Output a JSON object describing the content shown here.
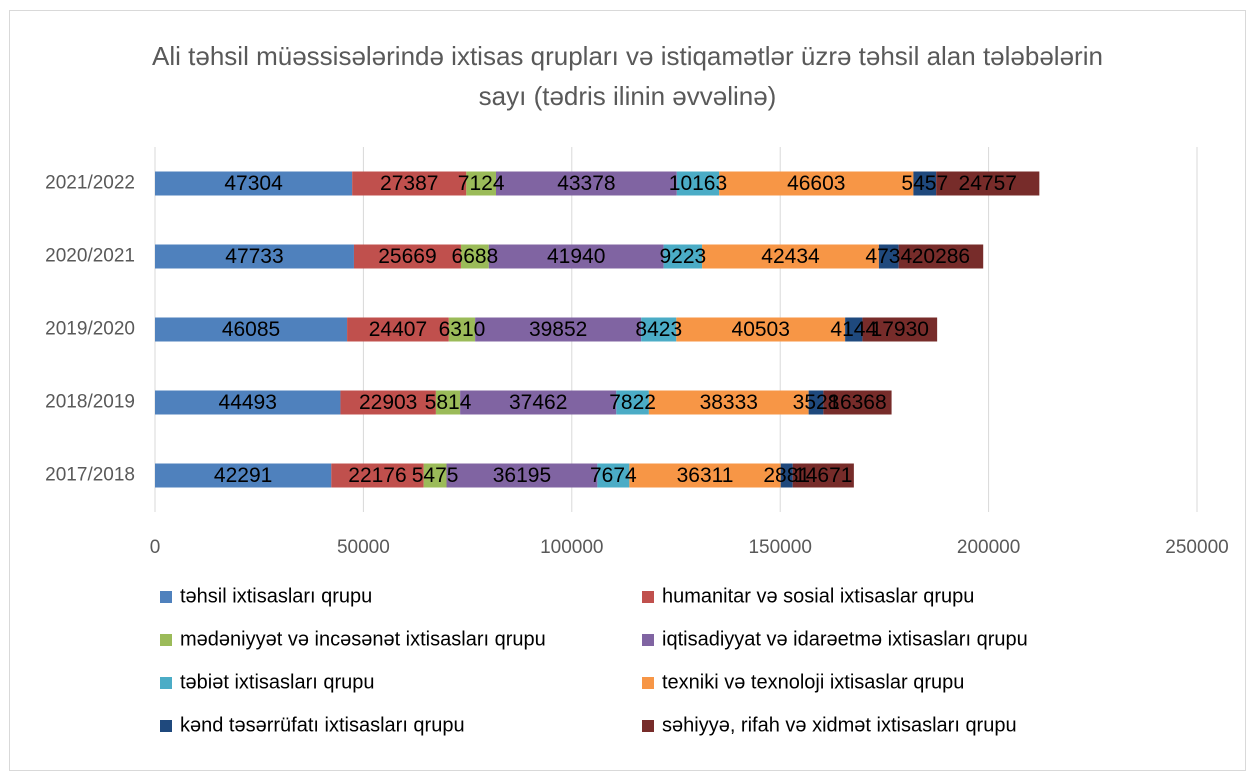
{
  "chart_data": {
    "type": "stacked_barh",
    "title": "Ali təhsil müəssisələrində ixtisas qrupları və istiqamətlər üzrə təhsil alan tələbələrin sayı (tədris ilinin əvvəlinə)",
    "categories": [
      "2017/2018",
      "2018/2019",
      "2019/2020",
      "2020/2021",
      "2021/2022"
    ],
    "series": [
      {
        "name": "təhsil ixtisasları qrupu",
        "color": "#4f81bd",
        "values": [
          42291,
          44493,
          46085,
          47733,
          47304
        ]
      },
      {
        "name": "humanitar və sosial ixtisaslar qrupu",
        "color": "#c0504d",
        "values": [
          22176,
          22903,
          24407,
          25669,
          27387
        ]
      },
      {
        "name": "mədəniyyət və incəsənət ixtisasları qrupu",
        "color": "#9bbb59",
        "values": [
          5475,
          5814,
          6310,
          6688,
          7124
        ]
      },
      {
        "name": "iqtisadiyyat və idarəetmə ixtisasları qrupu",
        "color": "#8064a2",
        "values": [
          36195,
          37462,
          39852,
          41940,
          43378
        ]
      },
      {
        "name": "təbiət ixtisasları qrupu",
        "color": "#4bacc6",
        "values": [
          7674,
          7822,
          8423,
          9223,
          10163
        ]
      },
      {
        "name": "texniki və texnoloji ixtisaslar qrupu",
        "color": "#f79646",
        "values": [
          36311,
          38333,
          40503,
          42434,
          46603
        ]
      },
      {
        "name": "kənd təsərrüfatı ixtisasları qrupu",
        "color": "#1f497d",
        "values": [
          2881,
          3528,
          4144,
          4734,
          5457
        ]
      },
      {
        "name": "səhiyyə, rifah və xidmət ixtisasları qrupu",
        "color": "#772c2a",
        "values": [
          14671,
          16368,
          17930,
          20286,
          24757
        ]
      }
    ],
    "xlim": [
      0,
      250000
    ],
    "xticks": [
      0,
      50000,
      100000,
      150000,
      200000,
      250000
    ],
    "grid": true,
    "legend": "bottom"
  }
}
